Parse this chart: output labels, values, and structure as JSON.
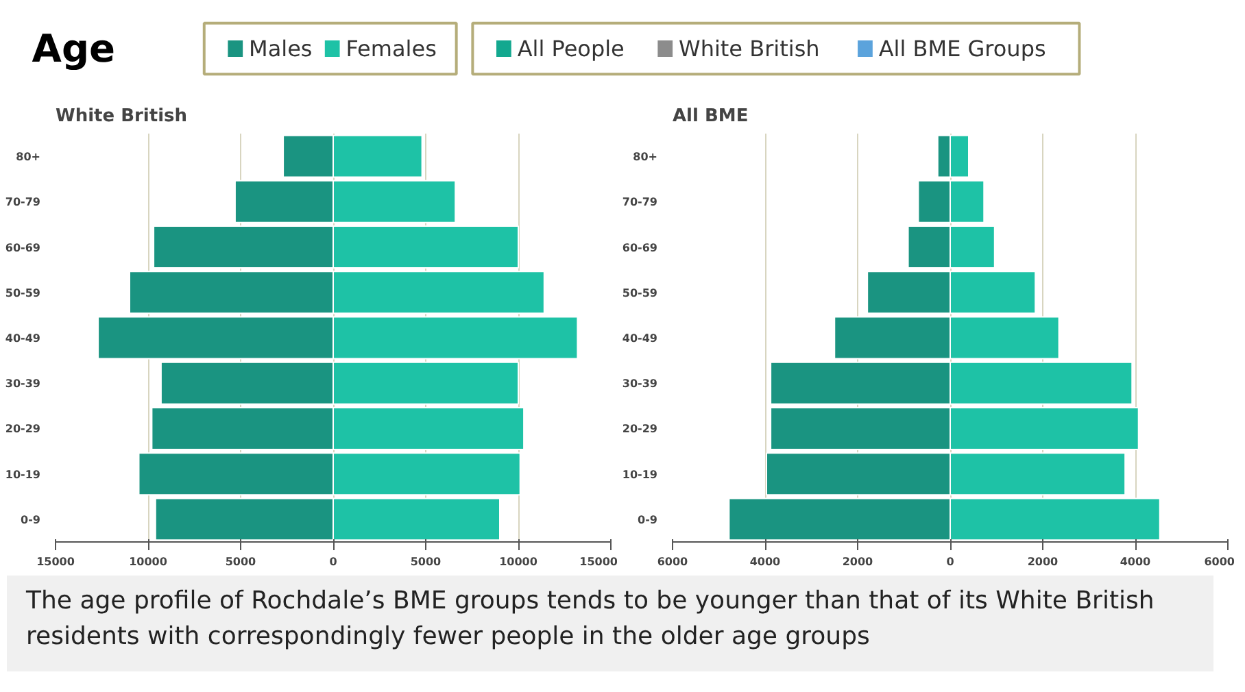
{
  "chart_data": [
    {
      "type": "other",
      "title": "Age"
    },
    {
      "type": "bar",
      "title": "White British",
      "orientation": "horizontal",
      "stacked": true,
      "categories": [
        "80+",
        "70-79",
        "60-69",
        "50-59",
        "40-49",
        "30-39",
        "20-29",
        "10-19",
        "0-9"
      ],
      "series": [
        {
          "name": "Males",
          "color": "#1a9481",
          "values": [
            -2700,
            -5300,
            -9700,
            -11000,
            -12700,
            -9300,
            -9800,
            -10500,
            -9600
          ]
        },
        {
          "name": "Females",
          "color": "#1ec2a6",
          "values": [
            4800,
            6600,
            10000,
            11400,
            13200,
            10000,
            10300,
            10100,
            9000
          ]
        }
      ],
      "xlim": [
        -15000,
        15000
      ],
      "xticks": [
        {
          "value": -15000,
          "label": "15000"
        },
        {
          "value": -10000,
          "label": "10000"
        },
        {
          "value": -5000,
          "label": "5000"
        },
        0,
        5000,
        10000,
        15000
      ],
      "grid": "x",
      "legend": "top"
    },
    {
      "type": "bar",
      "title": "All BME",
      "orientation": "horizontal",
      "stacked": true,
      "categories": [
        "80+",
        "70-79",
        "60-69",
        "50-59",
        "40-49",
        "30-39",
        "20-29",
        "10-19",
        "0-9"
      ],
      "series": [
        {
          "color": "#1a9481",
          "values": [
            -270,
            -690,
            -910,
            -1790,
            -2500,
            -3880,
            -3880,
            -3970,
            -4780
          ]
        },
        {
          "color": "#1ec2a6",
          "values": [
            400,
            730,
            960,
            1840,
            2350,
            3930,
            4070,
            3780,
            4530
          ]
        },
        {
          "name": "All People",
          "color": "#13a88f",
          "values": [
            null,
            null,
            null,
            null,
            null,
            null,
            null,
            null,
            null
          ]
        },
        {
          "name": "White British",
          "color": "#8c8c8c",
          "values": [
            null,
            null,
            null,
            null,
            null,
            null,
            null,
            null,
            null
          ]
        },
        {
          "name": "All BME Groups",
          "color": "#5ba3dc",
          "values": [
            null,
            null,
            null,
            null,
            null,
            null,
            null,
            null,
            null
          ]
        }
      ],
      "xlim": [
        -6000,
        6000
      ],
      "xticks": [
        {
          "value": -6000,
          "label": "6000"
        },
        {
          "value": -4000,
          "label": "4000"
        },
        {
          "value": -2000,
          "label": "2000"
        },
        0,
        2000,
        4000,
        6000
      ],
      "grid": "x",
      "legend": "top",
      "annotations": [
        "The age profile of Rochdale’s BME groups tends to be younger than that of its White British residents with correspondingly fewer people in the older age groups"
      ]
    }
  ]
}
